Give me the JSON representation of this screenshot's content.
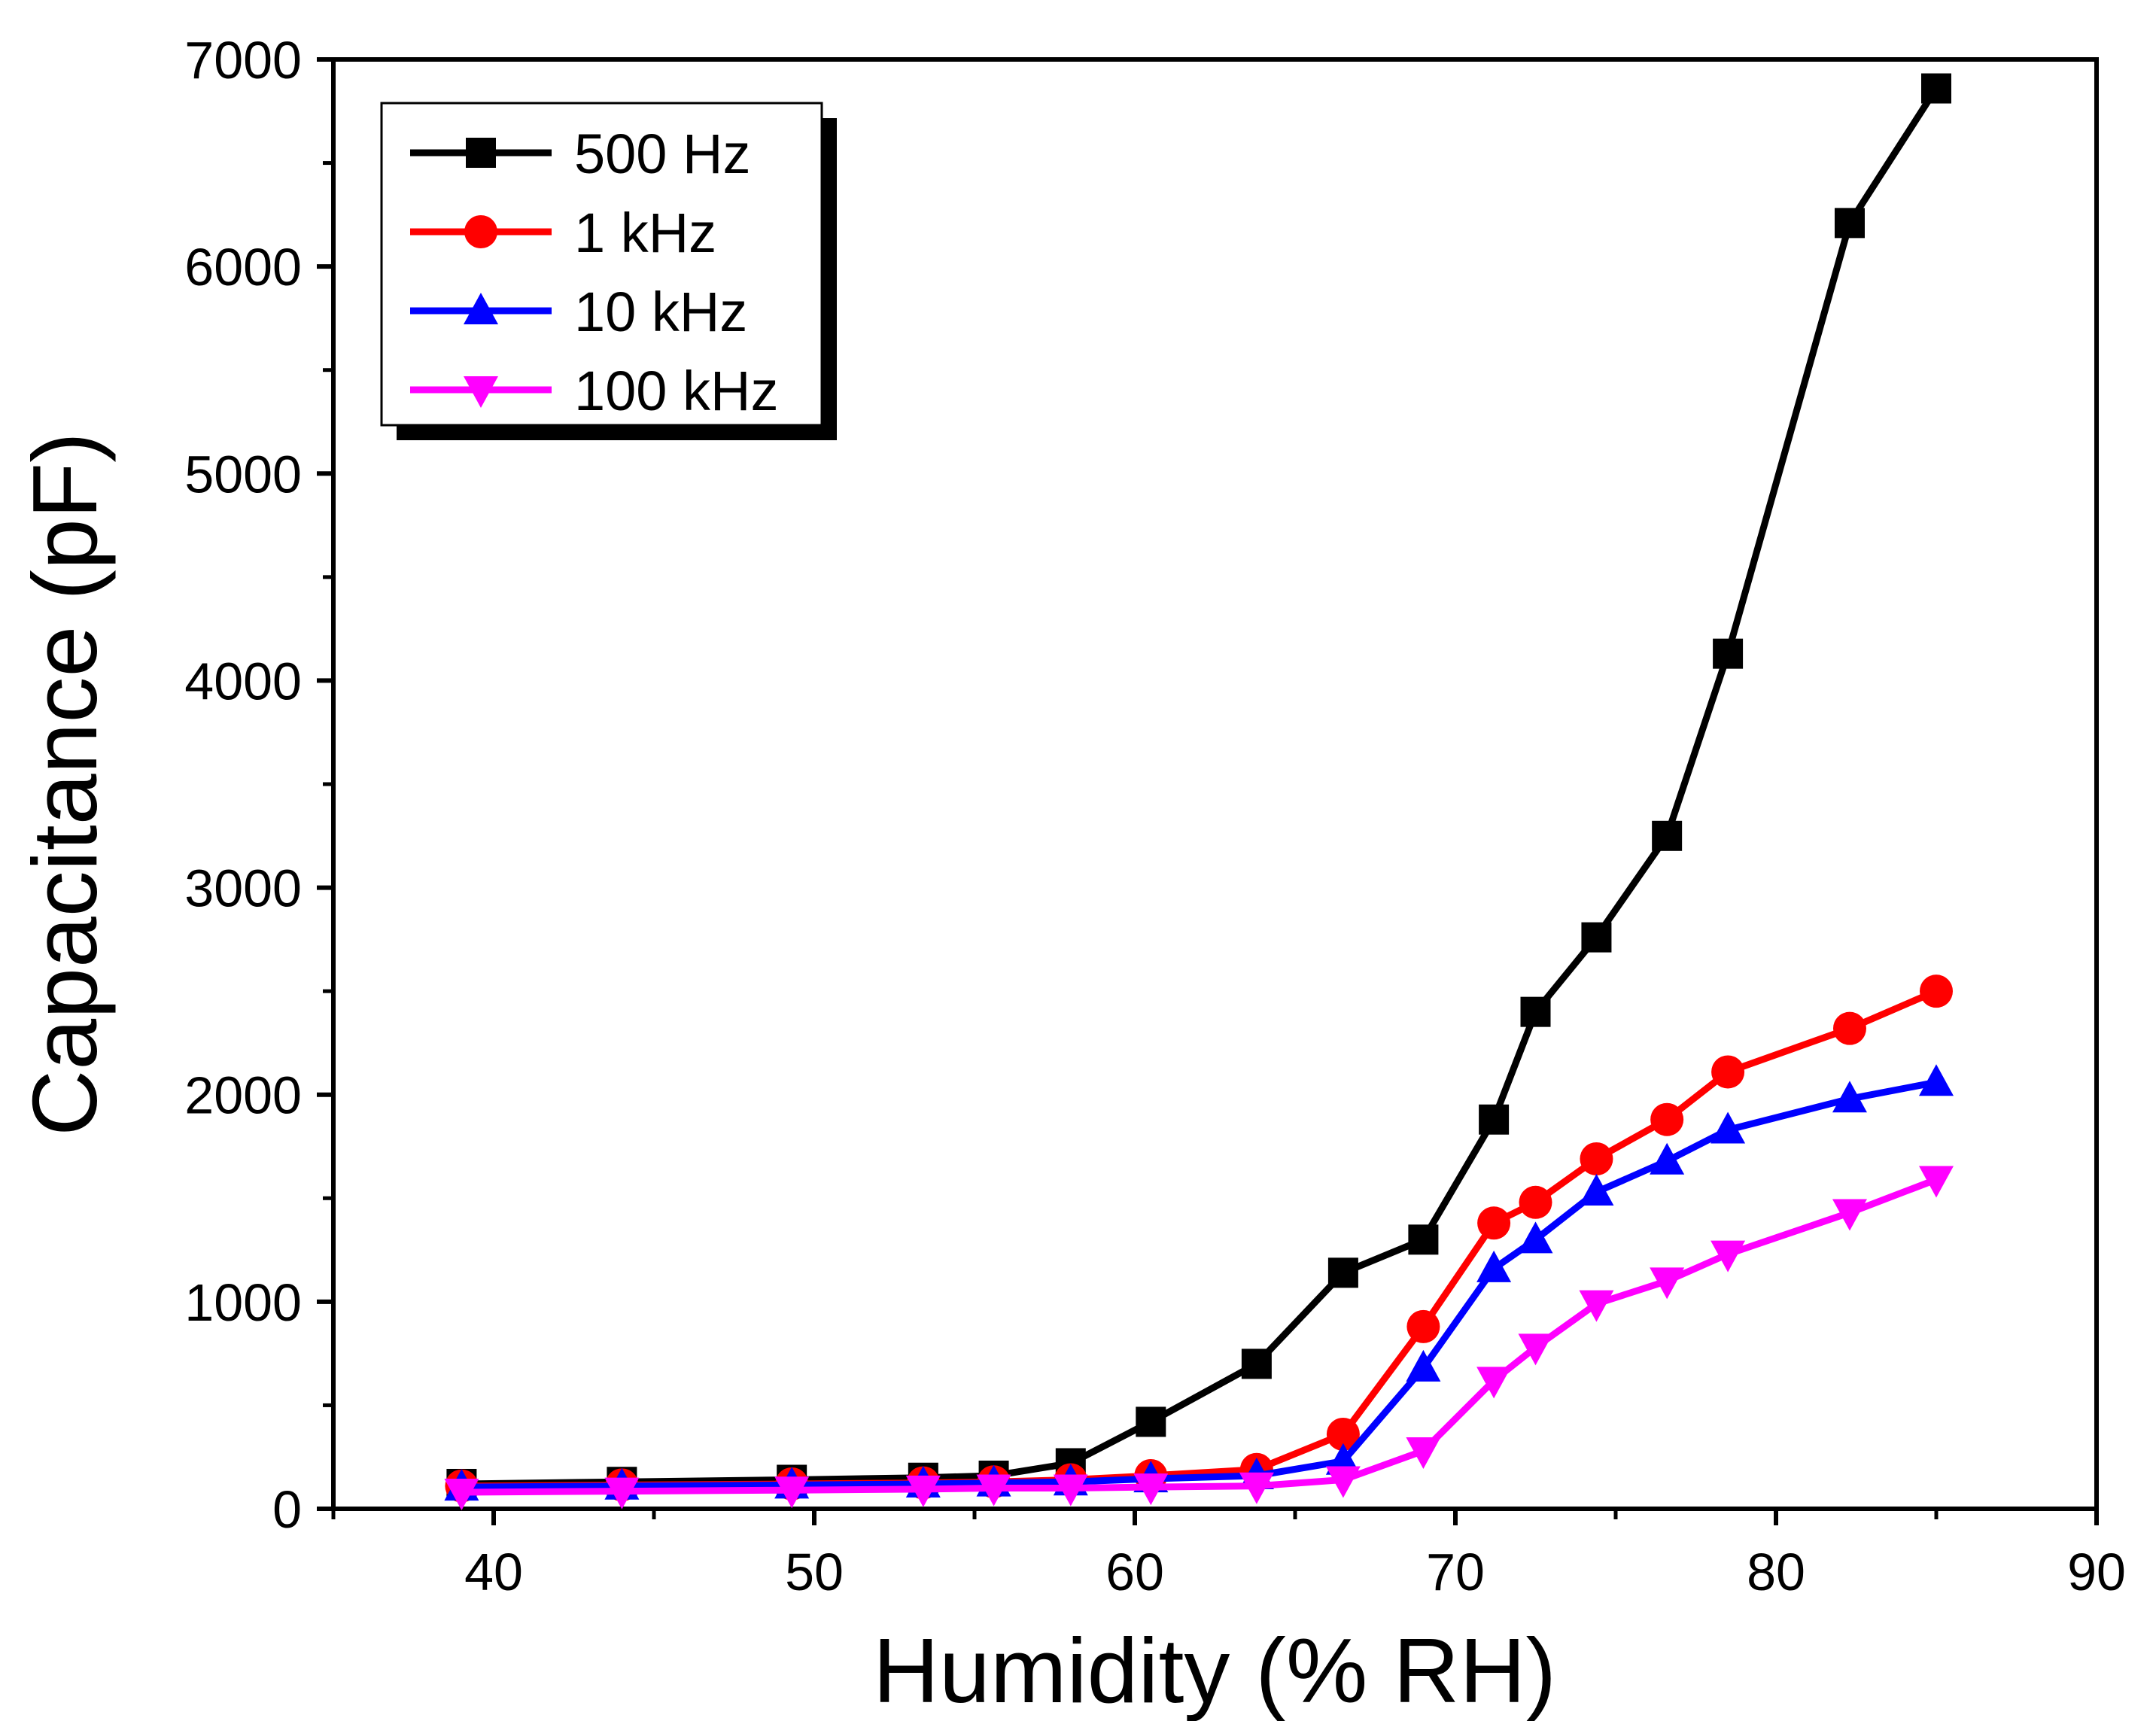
{
  "chart_data": {
    "type": "line",
    "title": "",
    "xlabel": "Humidity (% RH)",
    "ylabel": "Capacitance (pF)",
    "xlim": [
      35,
      90
    ],
    "ylim": [
      0,
      7000
    ],
    "xticks": [
      40,
      50,
      60,
      70,
      80,
      90
    ],
    "yticks": [
      0,
      1000,
      2000,
      3000,
      4000,
      5000,
      6000,
      7000
    ],
    "x_tick_labels": [
      "40",
      "50",
      "60",
      "70",
      "80",
      "90"
    ],
    "y_tick_labels": [
      "0",
      "1000",
      "2000",
      "3000",
      "4000",
      "5000",
      "6000",
      "7000"
    ],
    "grid": false,
    "legend_position": "top-left",
    "x": [
      39,
      44,
      49.3,
      53.4,
      55.6,
      58,
      60.5,
      63.8,
      66.5,
      69,
      71.2,
      72.5,
      74.4,
      76.6,
      78.5,
      82.3,
      85
    ],
    "series": [
      {
        "name": "500 Hz",
        "color": "#000000",
        "marker": "square",
        "values": [
          120,
          130,
          140,
          150,
          160,
          220,
          420,
          700,
          1140,
          1300,
          1880,
          2400,
          2760,
          3250,
          4130,
          6210,
          6860
        ]
      },
      {
        "name": "1 kHz",
        "color": "#ff0000",
        "marker": "circle",
        "values": [
          110,
          115,
          120,
          125,
          130,
          140,
          160,
          190,
          360,
          880,
          1380,
          1480,
          1690,
          1880,
          2110,
          2320,
          2500
        ]
      },
      {
        "name": "10 kHz",
        "color": "#0000ff",
        "marker": "triangle-up",
        "values": [
          105,
          110,
          115,
          120,
          125,
          130,
          145,
          160,
          230,
          680,
          1160,
          1300,
          1530,
          1680,
          1830,
          1980,
          2060
        ]
      },
      {
        "name": "100 kHz",
        "color": "#ff00ff",
        "marker": "triangle-down",
        "values": [
          80,
          85,
          90,
          95,
          100,
          100,
          105,
          110,
          140,
          280,
          620,
          780,
          990,
          1100,
          1230,
          1430,
          1590
        ]
      }
    ]
  }
}
